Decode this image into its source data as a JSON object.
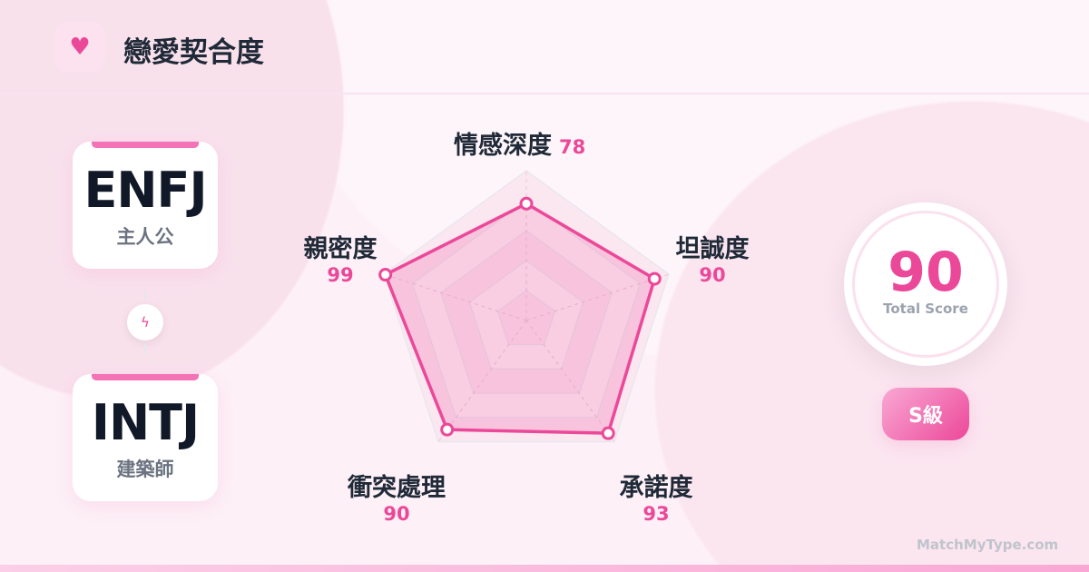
{
  "header": {
    "title": "戀愛契合度",
    "icon": "heart-icon"
  },
  "types": [
    {
      "code": "ENFJ",
      "nickname": "主人公"
    },
    {
      "code": "INTJ",
      "nickname": "建築師"
    }
  ],
  "connector_icon": "lightning-icon",
  "chart_data": {
    "type": "radar",
    "max": 100,
    "categories": [
      "情感深度",
      "坦誠度",
      "承諾度",
      "衝突處理",
      "親密度"
    ],
    "values": [
      78,
      90,
      93,
      90,
      99
    ],
    "value_labels": [
      "78",
      "90",
      "93",
      "90",
      "99"
    ],
    "color": "#ec4899",
    "levels": 5
  },
  "score": {
    "value": "90",
    "caption": "Total Score",
    "grade": "S級"
  },
  "footer": {
    "site": "MatchMyType.com"
  },
  "colors": {
    "accent": "#ec4899",
    "text": "#1f2937"
  }
}
